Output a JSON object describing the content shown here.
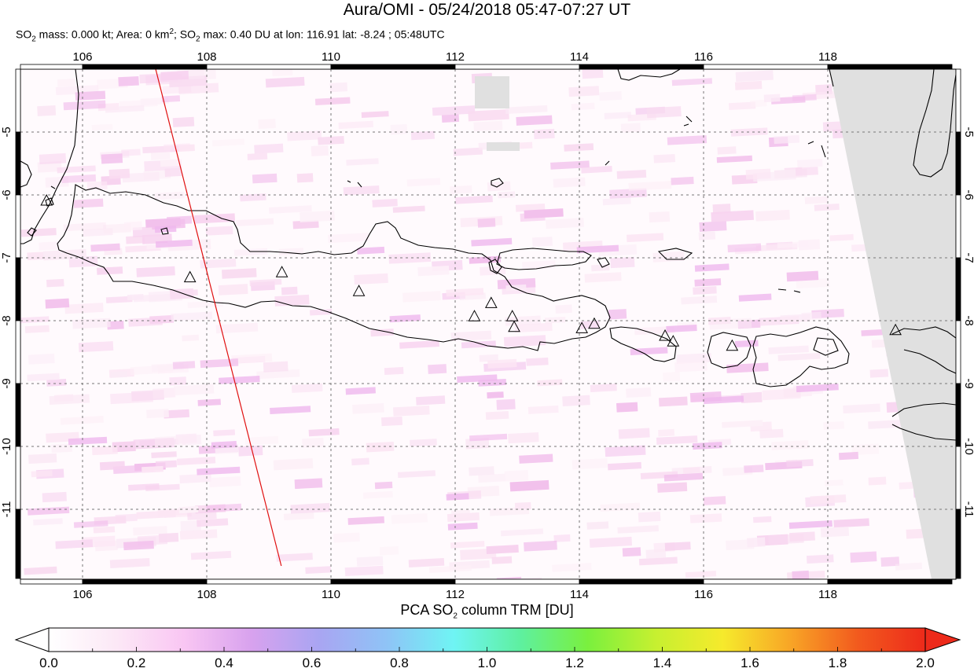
{
  "title": "Aura/OMI - 05/24/2018 05:47-07:27 UT",
  "subtitle": {
    "p1": "SO",
    "s1": "2",
    "p2": " mass: 0.000 kt; Area: 0 km",
    "sup1": "2",
    "p3": "; SO",
    "s2": "2",
    "p4": " max: 0.40 DU at lon: 116.91 lat: -8.24 ; 05:48UTC"
  },
  "axes": {
    "lon_ticks": [
      "106",
      "108",
      "110",
      "112",
      "114",
      "116",
      "118"
    ],
    "lat_ticks": [
      "-5",
      "-6",
      "-7",
      "-8",
      "-9",
      "-10",
      "-11"
    ],
    "lon_range": [
      105,
      120
    ],
    "lat_range": [
      -12.1,
      -3.95
    ]
  },
  "colorbar": {
    "title_pre": "PCA SO",
    "title_sub": "2",
    "title_post": " column TRM [DU]",
    "labels": [
      "0.0",
      "0.2",
      "0.4",
      "0.6",
      "0.8",
      "1.0",
      "1.2",
      "1.4",
      "1.6",
      "1.8",
      "2.0"
    ],
    "range": [
      0,
      2
    ],
    "colors": [
      "#ffffff",
      "#fce8f6",
      "#f9c6f3",
      "#d8a2ee",
      "#a9a5f2",
      "#8fc3f6",
      "#6ff4f4",
      "#5ef0a0",
      "#7af03e",
      "#c6f030",
      "#f6ea2c",
      "#f8a526",
      "#f25a1e",
      "#ed2a1a"
    ]
  },
  "volcanoes": [
    {
      "lon": 105.42,
      "lat": -6.1
    },
    {
      "lon": 107.73,
      "lat": -7.32
    },
    {
      "lon": 109.21,
      "lat": -7.24
    },
    {
      "lon": 110.45,
      "lat": -7.54
    },
    {
      "lon": 112.31,
      "lat": -7.94
    },
    {
      "lon": 112.58,
      "lat": -7.73
    },
    {
      "lon": 112.92,
      "lat": -7.94
    },
    {
      "lon": 112.95,
      "lat": -8.11
    },
    {
      "lon": 114.04,
      "lat": -8.13
    },
    {
      "lon": 114.24,
      "lat": -8.06
    },
    {
      "lon": 115.38,
      "lat": -8.25
    },
    {
      "lon": 115.51,
      "lat": -8.34
    },
    {
      "lon": 116.46,
      "lat": -8.41
    },
    {
      "lon": 119.09,
      "lat": -8.16
    }
  ],
  "track_line": {
    "start": {
      "lon": 107.17,
      "lat": -3.97
    },
    "end": {
      "lon": 109.2,
      "lat": -11.9
    },
    "color": "#e01010"
  },
  "nodata_color": "#e0e0e0"
}
